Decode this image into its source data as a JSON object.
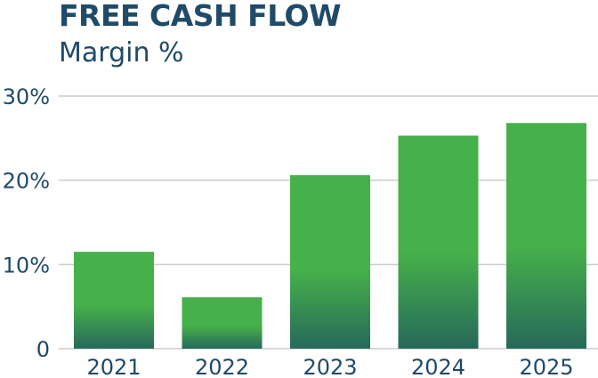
{
  "title": "FREE CASH FLOW",
  "subtitle": "Margin %",
  "colors": {
    "title": "#1f4a68",
    "bar_top": "#46b04a",
    "bar_bottom": "#26695a",
    "grid": "#cccccc",
    "axis_text": "#1f4a68"
  },
  "chart_data": {
    "type": "bar",
    "title": "FREE CASH FLOW",
    "subtitle": "Margin %",
    "categories": [
      "2021",
      "2022",
      "2023",
      "2024",
      "2025"
    ],
    "values": [
      11.5,
      6.1,
      20.6,
      25.3,
      26.8
    ],
    "y_ticks": [
      0,
      10,
      20,
      30
    ],
    "y_tick_labels": [
      "0",
      "10%",
      "20%",
      "30%"
    ],
    "ylim": [
      0,
      30
    ],
    "unit": "%",
    "grid": true,
    "legend": "none"
  }
}
